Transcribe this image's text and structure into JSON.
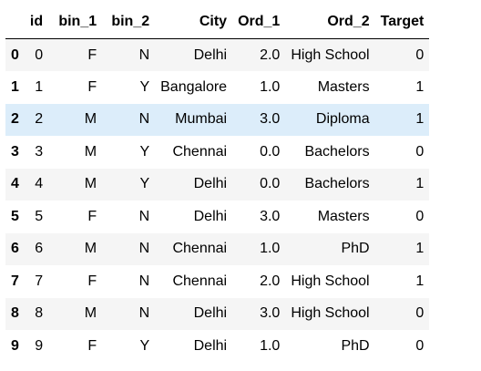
{
  "dataframe": {
    "columns": [
      "",
      "id",
      "bin_1",
      "bin_2",
      "City",
      "Ord_1",
      "Ord_2",
      "Target"
    ],
    "rows": [
      {
        "index": "0",
        "id": "0",
        "bin_1": "F",
        "bin_2": "N",
        "City": "Delhi",
        "Ord_1": "2.0",
        "Ord_2": "High School",
        "Target": "0"
      },
      {
        "index": "1",
        "id": "1",
        "bin_1": "F",
        "bin_2": "Y",
        "City": "Bangalore",
        "Ord_1": "1.0",
        "Ord_2": "Masters",
        "Target": "1"
      },
      {
        "index": "2",
        "id": "2",
        "bin_1": "M",
        "bin_2": "N",
        "City": "Mumbai",
        "Ord_1": "3.0",
        "Ord_2": "Diploma",
        "Target": "1"
      },
      {
        "index": "3",
        "id": "3",
        "bin_1": "M",
        "bin_2": "Y",
        "City": "Chennai",
        "Ord_1": "0.0",
        "Ord_2": "Bachelors",
        "Target": "0"
      },
      {
        "index": "4",
        "id": "4",
        "bin_1": "M",
        "bin_2": "Y",
        "City": "Delhi",
        "Ord_1": "0.0",
        "Ord_2": "Bachelors",
        "Target": "1"
      },
      {
        "index": "5",
        "id": "5",
        "bin_1": "F",
        "bin_2": "N",
        "City": "Delhi",
        "Ord_1": "3.0",
        "Ord_2": "Masters",
        "Target": "0"
      },
      {
        "index": "6",
        "id": "6",
        "bin_1": "M",
        "bin_2": "N",
        "City": "Chennai",
        "Ord_1": "1.0",
        "Ord_2": "PhD",
        "Target": "1"
      },
      {
        "index": "7",
        "id": "7",
        "bin_1": "F",
        "bin_2": "N",
        "City": "Chennai",
        "Ord_1": "2.0",
        "Ord_2": "High School",
        "Target": "1"
      },
      {
        "index": "8",
        "id": "8",
        "bin_1": "M",
        "bin_2": "N",
        "City": "Delhi",
        "Ord_1": "3.0",
        "Ord_2": "High School",
        "Target": "0"
      },
      {
        "index": "9",
        "id": "9",
        "bin_1": "F",
        "bin_2": "Y",
        "City": "Delhi",
        "Ord_1": "1.0",
        "Ord_2": "PhD",
        "Target": "0"
      }
    ],
    "hovered_row": 2
  },
  "colors": {
    "stripe": "#f5f5f5",
    "background": "#ffffff",
    "hover": "#dcedfa",
    "header_rule": "#000000"
  }
}
